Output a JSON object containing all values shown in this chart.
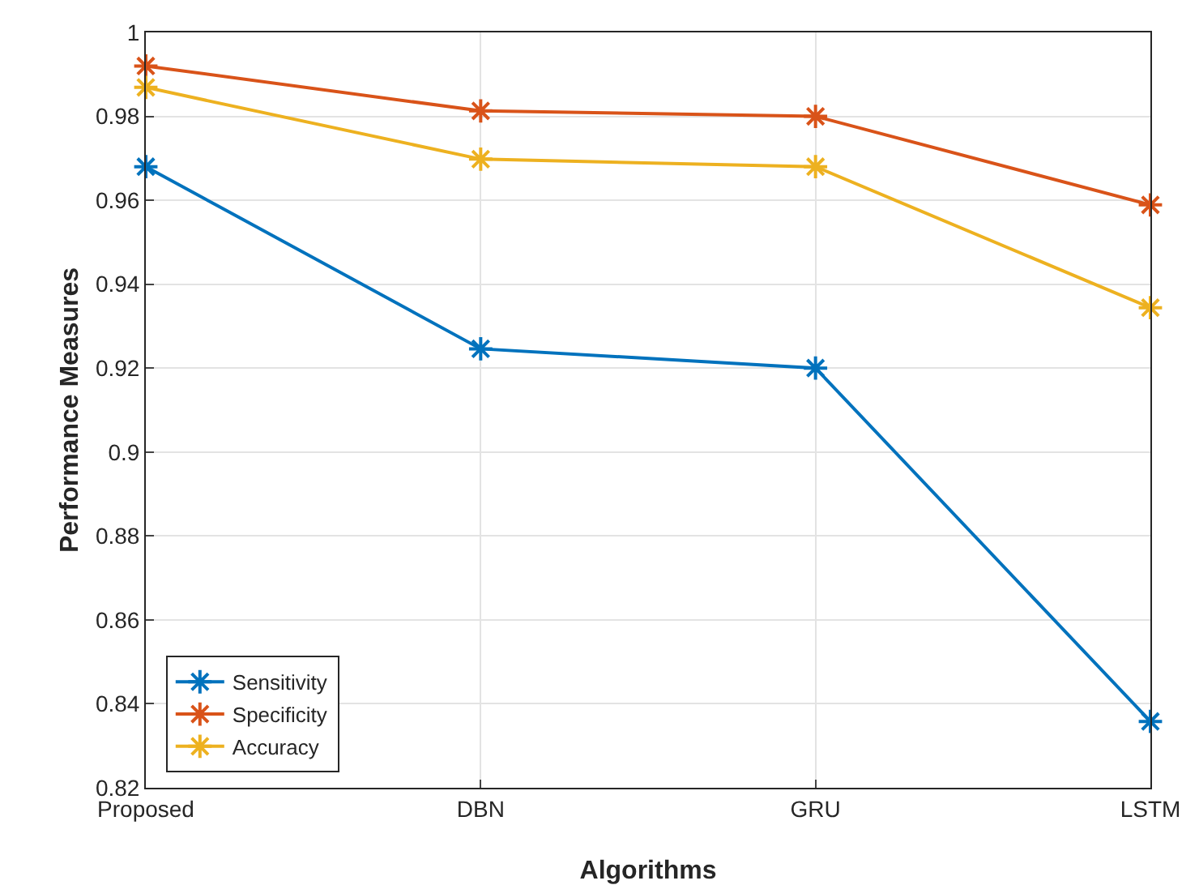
{
  "chart_data": {
    "type": "line",
    "xlabel": "Algorithms",
    "ylabel": "Performance Measures",
    "categories": [
      "Proposed",
      "DBN",
      "GRU",
      "LSTM"
    ],
    "series": [
      {
        "name": "Sensitivity",
        "color": "#0072bd",
        "values": [
          0.968,
          0.9246,
          0.92,
          0.8358
        ]
      },
      {
        "name": "Specificity",
        "color": "#d95319",
        "values": [
          0.992,
          0.9813,
          0.98,
          0.9589
        ]
      },
      {
        "name": "Accuracy",
        "color": "#edb120",
        "values": [
          0.9869,
          0.9698,
          0.968,
          0.9344
        ]
      }
    ],
    "ylim": [
      0.82,
      1
    ],
    "yticks": [
      0.82,
      0.84,
      0.86,
      0.88,
      0.9,
      0.92,
      0.94,
      0.96,
      0.98,
      1
    ],
    "grid": true,
    "legend": "bottom left",
    "marker": "cross",
    "line_style": "solid"
  }
}
